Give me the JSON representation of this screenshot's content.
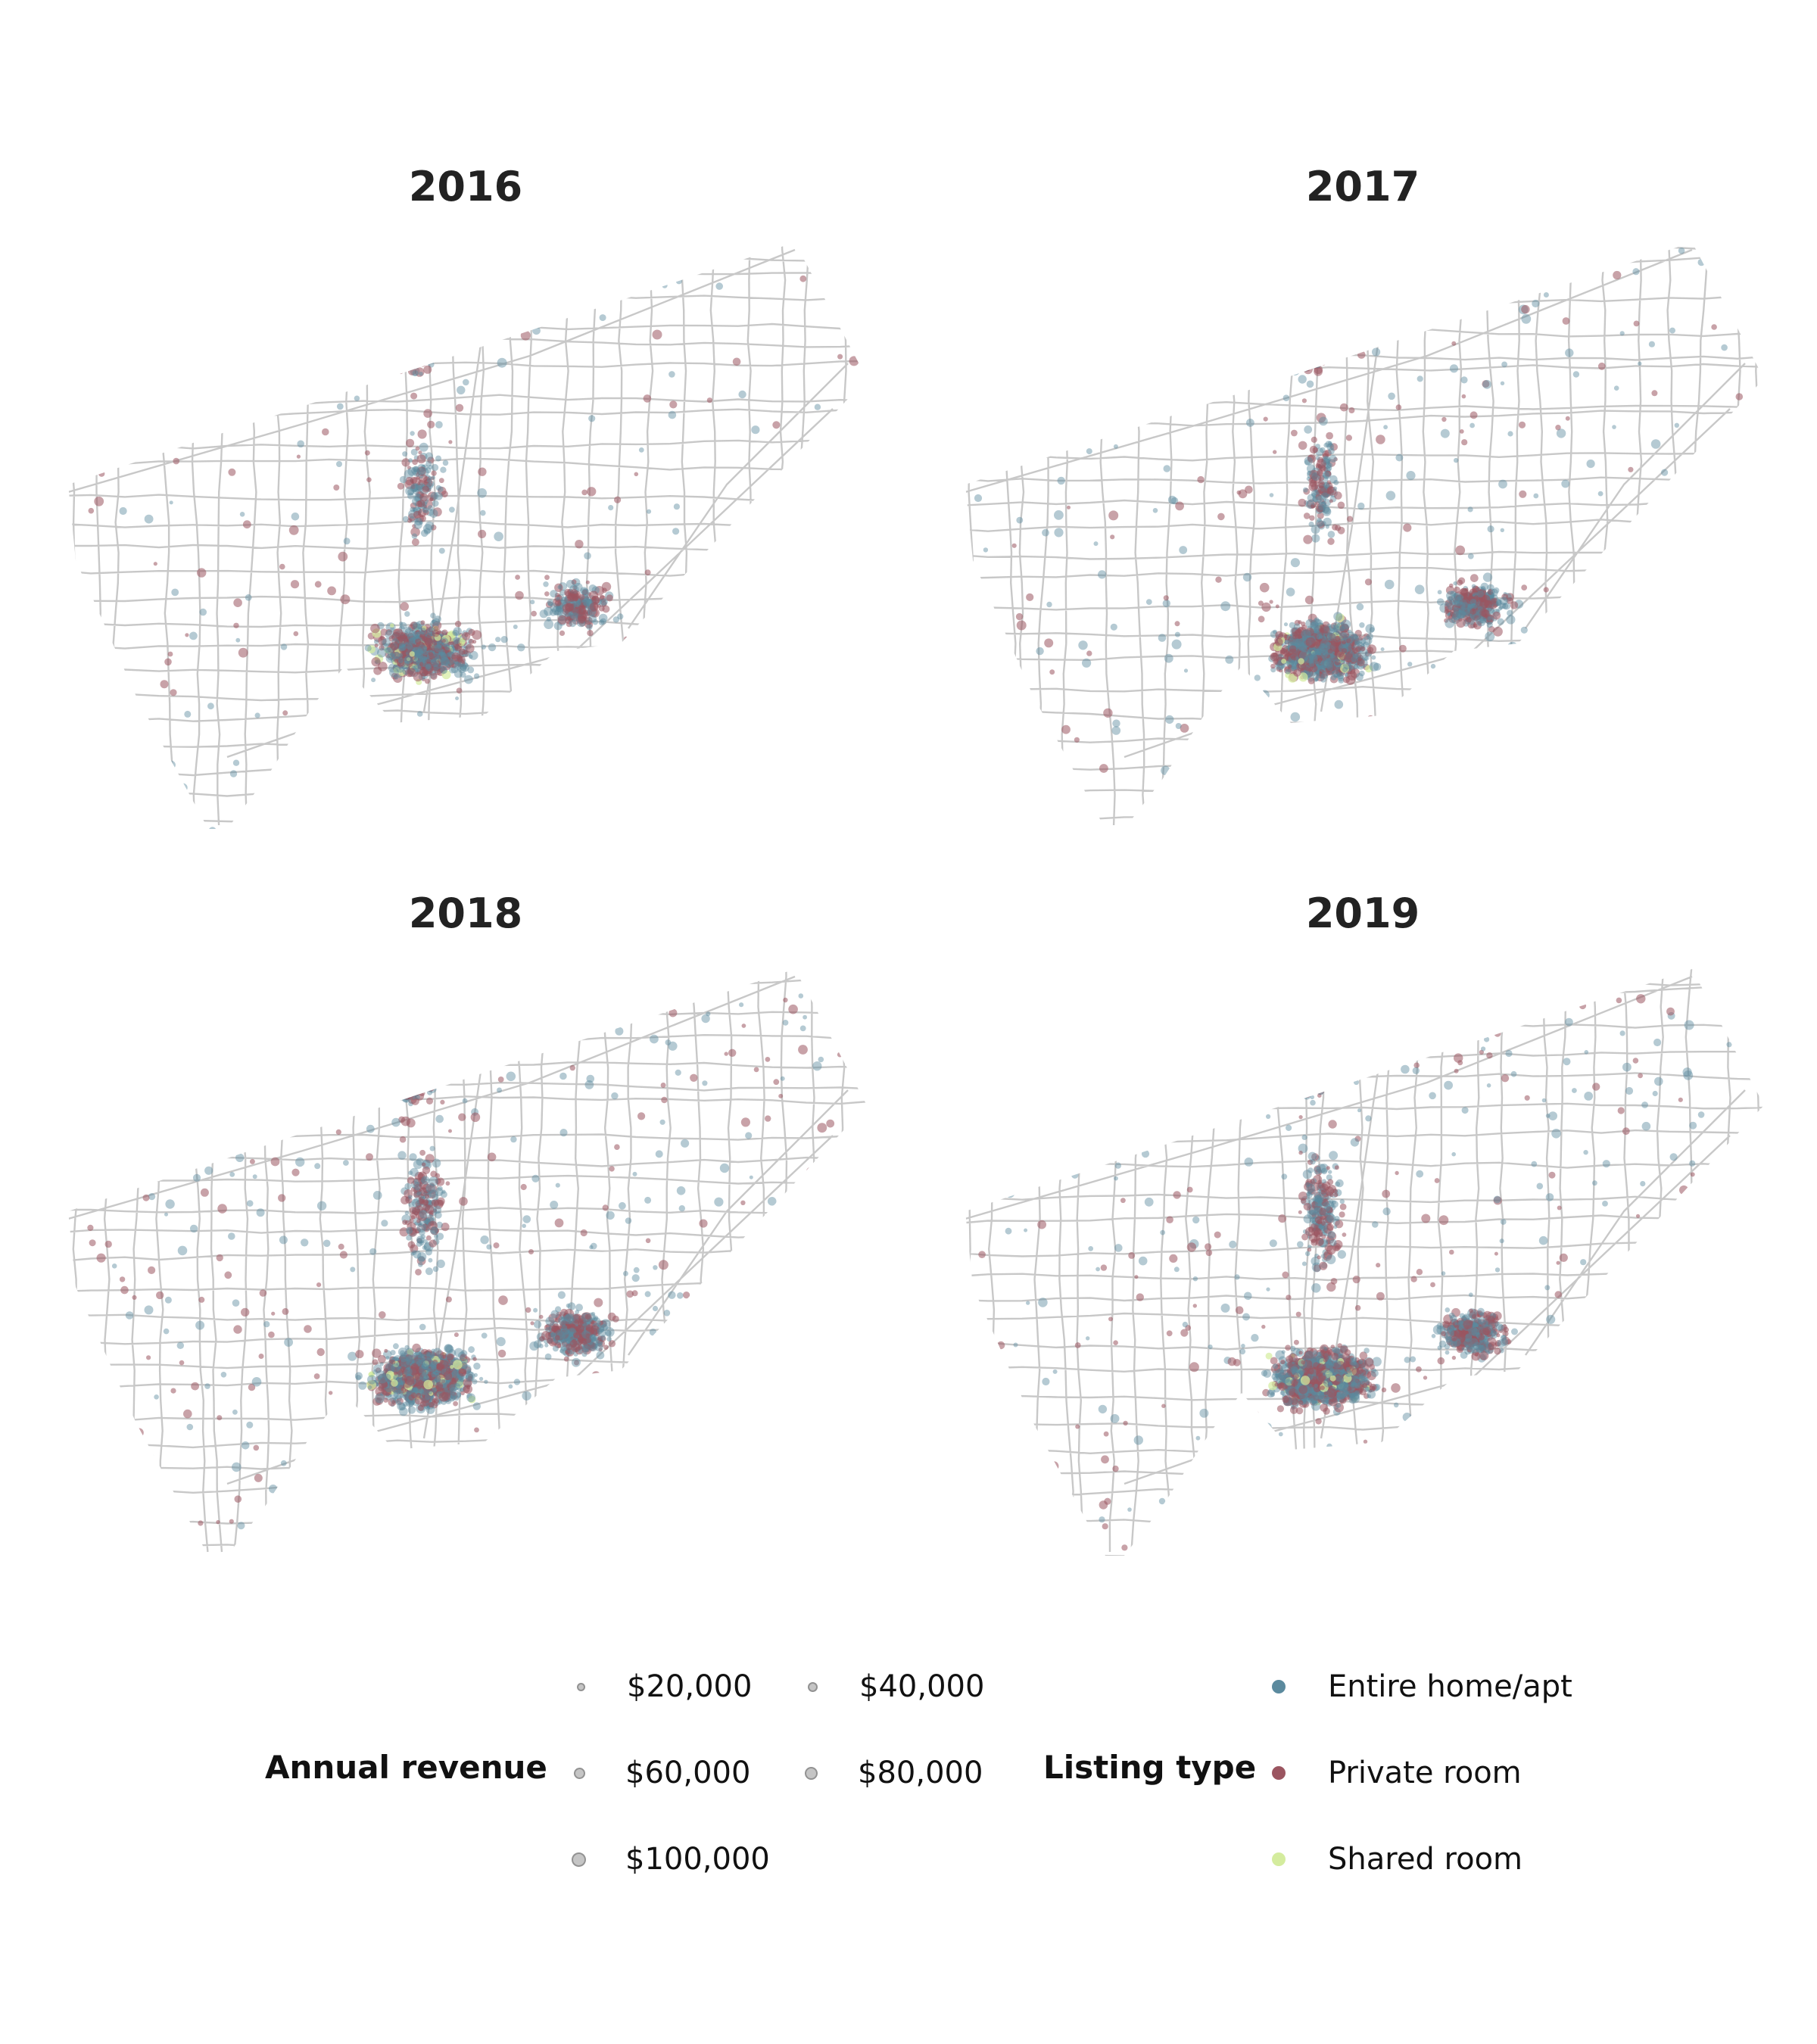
{
  "panels": [
    {
      "title": "2016",
      "density": 0.55
    },
    {
      "title": "2017",
      "density": 0.75
    },
    {
      "title": "2018",
      "density": 0.95
    },
    {
      "title": "2019",
      "density": 1.0
    }
  ],
  "legend": {
    "revenue": {
      "title": "Annual revenue",
      "items": [
        {
          "label": "$20,000",
          "value": 20000
        },
        {
          "label": "$40,000",
          "value": 40000
        },
        {
          "label": "$60,000",
          "value": 60000
        },
        {
          "label": "$80,000",
          "value": 80000
        },
        {
          "label": "$100,000",
          "value": 100000
        }
      ]
    },
    "listing_type": {
      "title": "Listing type",
      "items": [
        {
          "label": "Entire home/apt",
          "color": "#5b8a9e"
        },
        {
          "label": "Private room",
          "color": "#9b5560"
        },
        {
          "label": "Shared room",
          "color": "#d4ec9e"
        }
      ]
    }
  },
  "colors": {
    "roads": "#c8c8c8",
    "entire_home": "#5b8a9e",
    "private_room": "#9b5560",
    "shared_room": "#d4ec9e"
  }
}
